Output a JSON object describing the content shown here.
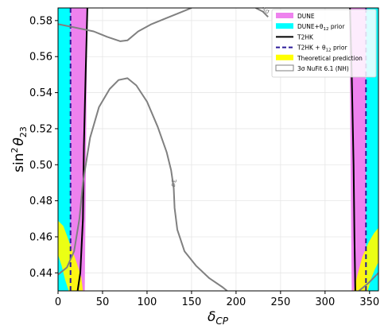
{
  "chart_data": {
    "type": "contour",
    "xlabel": "δ",
    "xlabel_sub": "CP",
    "ylabel": "sin",
    "ylabel_sup": "2",
    "ylabel_theta": "θ",
    "ylabel_sub": "23",
    "xlim": [
      0,
      360
    ],
    "ylim": [
      0.43,
      0.587
    ],
    "xticks": [
      0,
      50,
      100,
      150,
      200,
      250,
      300,
      350
    ],
    "yticks": [
      0.44,
      0.46,
      0.48,
      0.5,
      0.52,
      0.54,
      0.56,
      0.58
    ],
    "ytick_labels": [
      "0.44",
      "0.46",
      "0.48",
      "0.50",
      "0.52",
      "0.54",
      "0.56",
      "0.58"
    ],
    "grid": true,
    "legend_position": "top-right",
    "colors": {
      "dune": "#ee82ee",
      "dune_prior": "#00ffff",
      "t2hk": "#000000",
      "t2hk_prior": "#2b1a99",
      "theory": "#ffff00",
      "nufit": "#808080"
    },
    "legend": [
      {
        "key": "dune",
        "label": "DUNE",
        "style": "patch"
      },
      {
        "key": "dune_prior",
        "label": "DUNE+θ",
        "label_sub": "12",
        "label_tail": " prior",
        "style": "patch"
      },
      {
        "key": "t2hk",
        "label": "T2HK",
        "style": "solid"
      },
      {
        "key": "t2hk_prior",
        "label": "T2HK + θ",
        "label_sub": "12",
        "label_tail": " prior",
        "style": "dashed"
      },
      {
        "key": "theory",
        "label": "Theoretical prediction",
        "style": "patch"
      },
      {
        "key": "nufit",
        "label": "3σ NuFit 6.1 (NH)",
        "style": "outline"
      }
    ],
    "contour_labels": [
      "3σ",
      "3σ"
    ],
    "series": [
      {
        "kind": "band",
        "color_key": "dune_prior",
        "left": [
          [
            0,
            0.43
          ],
          [
            0,
            0.587
          ]
        ],
        "right": [
          [
            14,
            0.43
          ],
          [
            14,
            0.587
          ]
        ]
      },
      {
        "kind": "band",
        "color_key": "dune",
        "left": [
          [
            14,
            0.43
          ],
          [
            14,
            0.587
          ]
        ],
        "right": [
          [
            30,
            0.43
          ],
          [
            31,
            0.48
          ],
          [
            32,
            0.54
          ],
          [
            33,
            0.587
          ]
        ]
      },
      {
        "kind": "band",
        "color_key": "dune",
        "left": [
          [
            330,
            0.43
          ],
          [
            329,
            0.48
          ],
          [
            328,
            0.54
          ],
          [
            327,
            0.587
          ]
        ],
        "right": [
          [
            346,
            0.43
          ],
          [
            346,
            0.587
          ]
        ]
      },
      {
        "kind": "band",
        "color_key": "dune_prior",
        "left": [
          [
            346,
            0.43
          ],
          [
            346,
            0.587
          ]
        ],
        "right": [
          [
            360,
            0.43
          ],
          [
            360,
            0.587
          ]
        ]
      },
      {
        "kind": "line",
        "color_key": "t2hk",
        "style": "solid",
        "points": [
          [
            22,
            0.43
          ],
          [
            25,
            0.44
          ],
          [
            28,
            0.47
          ],
          [
            29,
            0.51
          ],
          [
            31,
            0.55
          ],
          [
            33,
            0.587
          ]
        ]
      },
      {
        "kind": "line",
        "color_key": "t2hk",
        "style": "solid",
        "points": [
          [
            334,
            0.43
          ],
          [
            333,
            0.46
          ],
          [
            332,
            0.5
          ],
          [
            330,
            0.55
          ],
          [
            328,
            0.587
          ]
        ]
      },
      {
        "kind": "line",
        "color_key": "t2hk_prior",
        "style": "dashed",
        "points": [
          [
            14,
            0.43
          ],
          [
            14,
            0.587
          ]
        ]
      },
      {
        "kind": "line",
        "color_key": "t2hk_prior",
        "style": "dashed",
        "points": [
          [
            346,
            0.43
          ],
          [
            346,
            0.587
          ]
        ]
      },
      {
        "kind": "region",
        "color_key": "theory",
        "points": [
          [
            0,
            0.469
          ],
          [
            6,
            0.466
          ],
          [
            12,
            0.458
          ],
          [
            20,
            0.447
          ],
          [
            26,
            0.438
          ],
          [
            28,
            0.43
          ],
          [
            12,
            0.43
          ],
          [
            8,
            0.436
          ],
          [
            4,
            0.444
          ],
          [
            0,
            0.45
          ]
        ]
      },
      {
        "kind": "region",
        "color_key": "theory",
        "points": [
          [
            332,
            0.43
          ],
          [
            336,
            0.438
          ],
          [
            342,
            0.449
          ],
          [
            349,
            0.457
          ],
          [
            355,
            0.462
          ],
          [
            360,
            0.465
          ],
          [
            360,
            0.446
          ],
          [
            356,
            0.442
          ],
          [
            352,
            0.437
          ],
          [
            348,
            0.43
          ]
        ]
      },
      {
        "kind": "contour",
        "color_key": "nufit",
        "points": [
          [
            0,
            0.578
          ],
          [
            20,
            0.576
          ],
          [
            40,
            0.574
          ],
          [
            55,
            0.571
          ],
          [
            70,
            0.5685
          ],
          [
            78,
            0.569
          ],
          [
            90,
            0.574
          ],
          [
            105,
            0.578
          ],
          [
            120,
            0.581
          ],
          [
            135,
            0.584
          ],
          [
            150,
            0.587
          ]
        ]
      },
      {
        "kind": "contour",
        "color_key": "nufit",
        "points": [
          [
            222,
            0.587
          ],
          [
            230,
            0.585
          ],
          [
            236,
            0.582
          ]
        ]
      },
      {
        "kind": "contour",
        "color_key": "nufit",
        "points": [
          [
            0,
            0.439
          ],
          [
            10,
            0.443
          ],
          [
            18,
            0.452
          ],
          [
            24,
            0.47
          ],
          [
            28,
            0.49
          ],
          [
            36,
            0.515
          ],
          [
            46,
            0.532
          ],
          [
            58,
            0.542
          ],
          [
            68,
            0.547
          ],
          [
            78,
            0.548
          ],
          [
            88,
            0.544
          ],
          [
            100,
            0.535
          ],
          [
            112,
            0.521
          ],
          [
            122,
            0.507
          ],
          [
            127,
            0.497
          ],
          [
            130,
            0.487
          ],
          [
            131,
            0.476
          ],
          [
            134,
            0.464
          ],
          [
            142,
            0.452
          ],
          [
            155,
            0.444
          ],
          [
            170,
            0.437
          ],
          [
            185,
            0.432
          ],
          [
            190,
            0.43
          ]
        ]
      },
      {
        "kind": "contour",
        "color_key": "nufit",
        "points": [
          [
            338,
            0.43
          ],
          [
            348,
            0.434
          ],
          [
            356,
            0.438
          ],
          [
            360,
            0.44
          ]
        ]
      }
    ]
  }
}
